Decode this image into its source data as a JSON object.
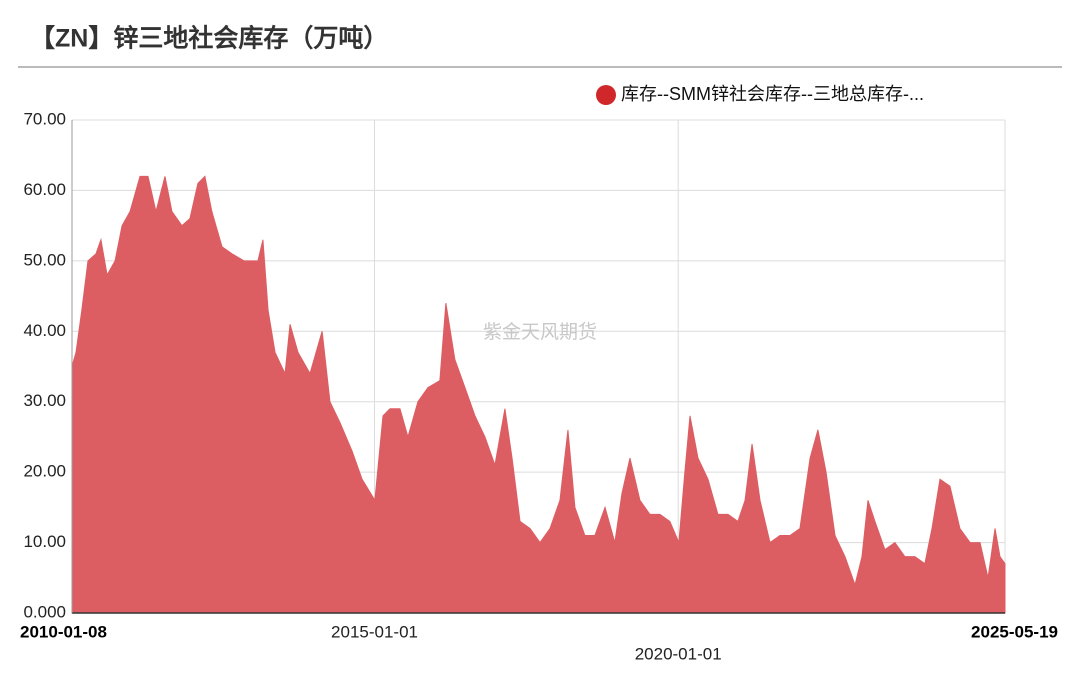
{
  "chart_data": {
    "type": "area",
    "title": "【ZN】锌三地社会库存（万吨）",
    "watermark": "紫金天风期货",
    "legend_position": "top-right",
    "grid": true,
    "x": [
      "2010-01-08",
      "2010-02-01",
      "2010-03-08",
      "2010-04-14",
      "2010-06-01",
      "2010-07-01",
      "2010-08-07",
      "2010-09-24",
      "2010-11-05",
      "2010-12-23",
      "2011-02-21",
      "2011-04-10",
      "2011-05-28",
      "2011-07-21",
      "2011-09-01",
      "2011-10-31",
      "2011-12-18",
      "2012-02-04",
      "2012-03-17",
      "2012-04-28",
      "2012-06-28",
      "2012-08-27",
      "2012-11-07",
      "2013-01-30",
      "2013-03-01",
      "2013-04-01",
      "2013-05-13",
      "2013-07-12",
      "2013-08-11",
      "2013-09-28",
      "2013-12-09",
      "2014-02-20",
      "2014-04-08",
      "2014-06-08",
      "2014-08-19",
      "2014-10-18",
      "2015-01-03",
      "2015-02-21",
      "2015-04-04",
      "2015-06-03",
      "2015-07-21",
      "2015-09-19",
      "2015-11-18",
      "2016-01-29",
      "2016-03-05",
      "2016-04-28",
      "2016-06-28",
      "2016-08-27",
      "2016-10-26",
      "2016-12-25",
      "2017-02-23",
      "2017-04-07",
      "2017-05-25",
      "2017-07-24",
      "2017-09-22",
      "2017-11-21",
      "2018-01-20",
      "2018-03-09",
      "2018-04-20",
      "2018-06-19",
      "2018-08-18",
      "2018-10-18",
      "2018-12-16",
      "2019-01-28",
      "2019-03-17",
      "2019-05-16",
      "2019-07-15",
      "2019-09-13",
      "2019-11-12",
      "2020-01-05",
      "2020-02-10",
      "2020-03-12",
      "2020-04-29",
      "2020-06-28",
      "2020-08-27",
      "2020-10-27",
      "2020-12-25",
      "2021-02-06",
      "2021-03-20",
      "2021-05-07",
      "2021-07-06",
      "2021-09-04",
      "2021-11-03",
      "2022-01-02",
      "2022-03-04",
      "2022-04-20",
      "2022-06-08",
      "2022-08-01",
      "2022-09-30",
      "2022-11-29",
      "2023-01-10",
      "2023-02-15",
      "2023-03-29",
      "2023-05-28",
      "2023-07-27",
      "2023-09-25",
      "2023-11-24",
      "2024-01-23",
      "2024-03-06",
      "2024-04-23",
      "2024-06-22",
      "2024-08-21",
      "2024-10-21",
      "2024-12-20",
      "2025-02-06",
      "2025-03-20",
      "2025-04-19",
      "2025-05-19"
    ],
    "series": [
      {
        "name": "库存--SMM锌社会库存--三地总库存-...",
        "color": "#dc5e63",
        "legend_color": "#d0282a",
        "values": [
          35,
          37,
          43,
          50,
          51,
          53,
          48,
          50,
          55,
          57,
          62,
          62,
          57,
          62,
          57,
          55,
          56,
          61,
          62,
          57,
          52,
          51,
          50,
          50,
          53,
          43,
          37,
          34,
          41,
          37,
          34,
          40,
          30,
          27,
          23,
          19,
          16,
          28,
          29,
          29,
          25,
          30,
          32,
          33,
          44,
          36,
          32,
          28,
          25,
          21,
          29,
          22,
          13,
          12,
          10,
          12,
          16,
          26,
          15,
          11,
          11,
          15,
          10,
          17,
          22,
          16,
          14,
          14,
          13,
          10,
          20,
          28,
          22,
          19,
          14,
          14,
          13,
          16,
          24,
          16,
          10,
          11,
          11,
          12,
          22,
          26,
          20,
          11,
          8,
          4,
          8,
          16,
          13,
          9,
          10,
          8,
          8,
          7,
          12,
          19,
          18,
          12,
          10,
          10,
          5,
          12,
          8,
          7
        ]
      }
    ],
    "xlim": [
      "2010-01-08",
      "2025-05-19"
    ],
    "xticks": [
      "2010-01-08",
      "2015-01-01",
      "2020-01-01",
      "2025-05-19"
    ],
    "ylim": [
      0,
      70
    ],
    "yticks": [
      {
        "value": 0,
        "label": "0.000"
      },
      {
        "value": 10,
        "label": "10.00"
      },
      {
        "value": 20,
        "label": "20.00"
      },
      {
        "value": 30,
        "label": "30.00"
      },
      {
        "value": 40,
        "label": "40.00"
      },
      {
        "value": 50,
        "label": "50.00"
      },
      {
        "value": 60,
        "label": "60.00"
      },
      {
        "value": 70,
        "label": "70.00"
      }
    ]
  }
}
